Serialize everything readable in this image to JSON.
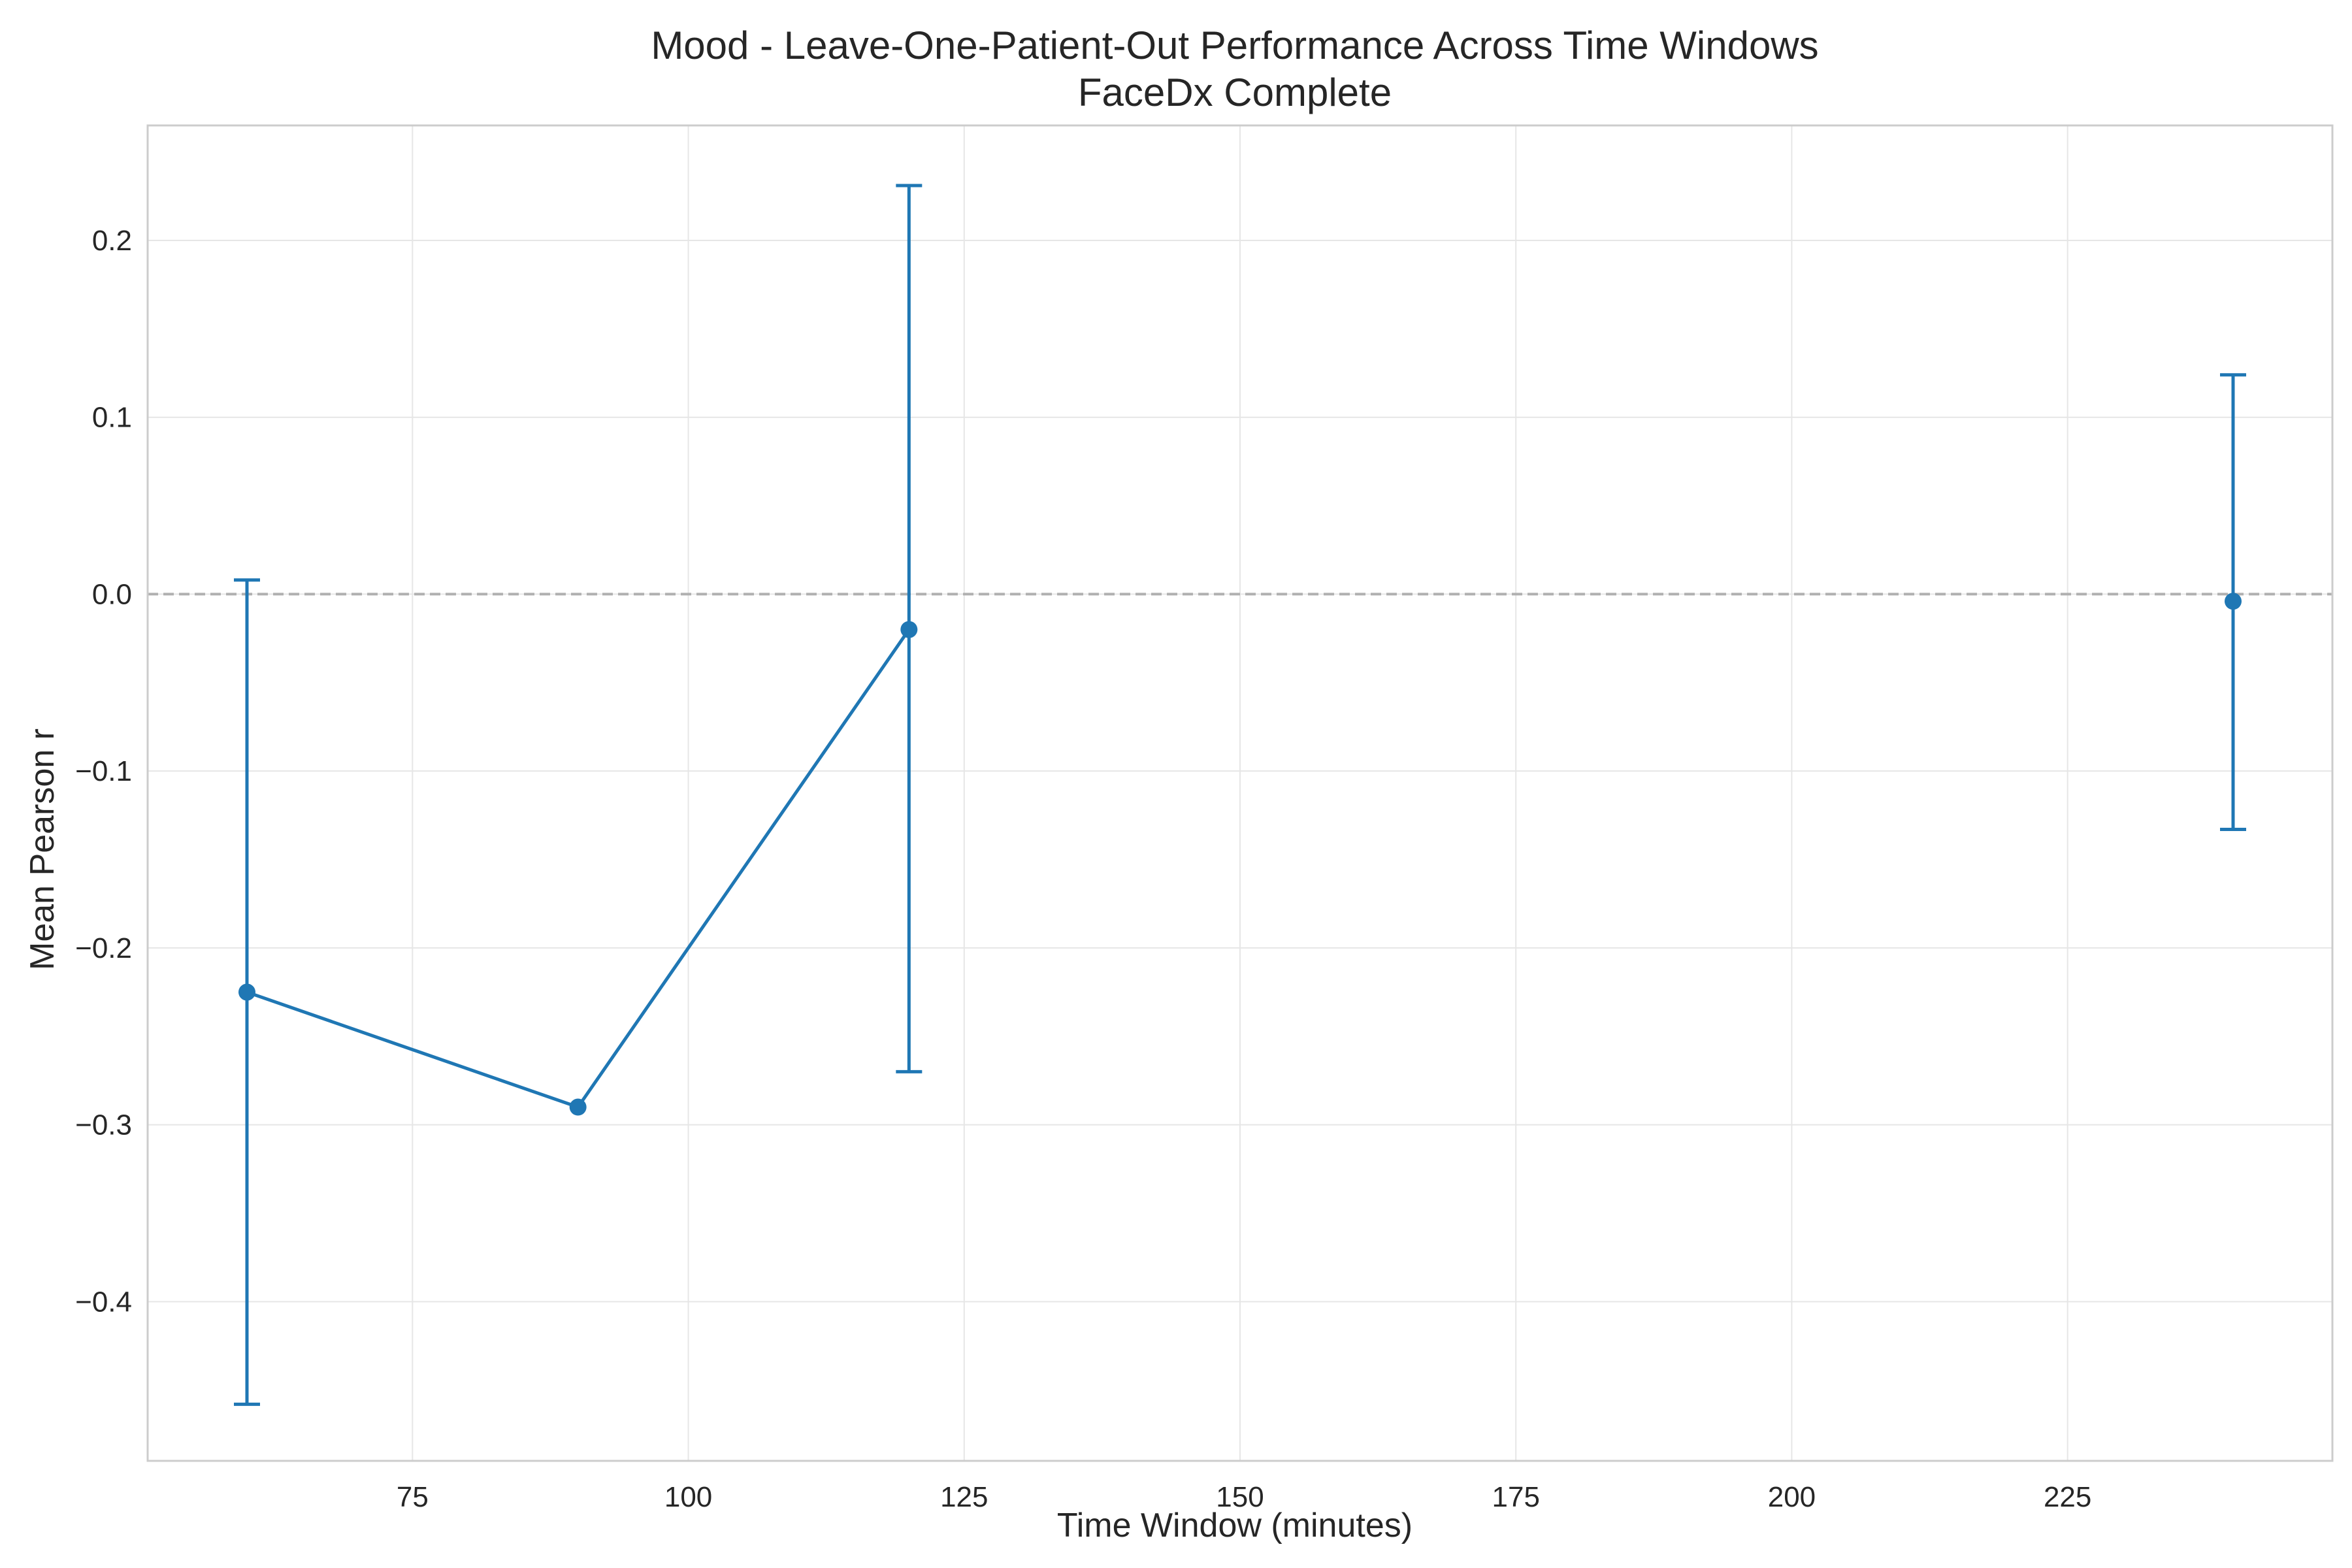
{
  "chart_data": {
    "type": "line",
    "title": "Mood - Leave-One-Patient-Out Performance Across Time Windows",
    "subtitle": "FaceDx Complete",
    "xlabel": "Time Window (minutes)",
    "ylabel": "Mean Pearson r",
    "xlim": [
      51,
      249
    ],
    "ylim": [
      -0.49,
      0.265
    ],
    "x_ticks": [
      75,
      100,
      125,
      150,
      175,
      200,
      225
    ],
    "y_ticks": [
      -0.4,
      -0.3,
      -0.2,
      -0.1,
      0.0,
      0.1,
      0.2
    ],
    "x_tick_labels": [
      "75",
      "100",
      "125",
      "150",
      "175",
      "200",
      "225"
    ],
    "y_tick_labels": [
      "−0.4",
      "−0.3",
      "−0.2",
      "−0.1",
      "0.0",
      "0.1",
      "0.2"
    ],
    "grid": true,
    "reference_line": {
      "y": 0.0,
      "style": "dashed",
      "color": "#b0b0b0"
    },
    "series": [
      {
        "color": "#1f77b4",
        "points": [
          {
            "x": 60,
            "y": -0.225,
            "err_low": -0.458,
            "err_high": 0.008
          },
          {
            "x": 90,
            "y": -0.29,
            "err_low": null,
            "err_high": null
          },
          {
            "x": 120,
            "y": -0.02,
            "err_low": -0.27,
            "err_high": 0.231
          },
          {
            "x": 240,
            "y": -0.004,
            "err_low": -0.133,
            "err_high": 0.124
          }
        ],
        "connected_until_index": 2
      }
    ]
  }
}
